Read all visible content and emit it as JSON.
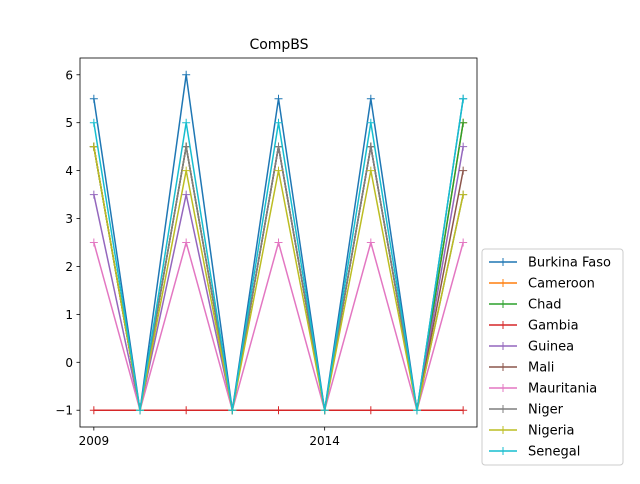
{
  "chart_data": {
    "type": "line",
    "title": "CompBS",
    "xlabel": "",
    "ylabel": "",
    "x": [
      2009,
      2010,
      2011,
      2012,
      2013,
      2014,
      2015,
      2016,
      2017
    ],
    "xlim": [
      2008.7,
      2017.3
    ],
    "ylim": [
      -1.35,
      6.35
    ],
    "xticks": [
      2009,
      2014
    ],
    "yticks": [
      -1,
      0,
      1,
      2,
      3,
      4,
      5,
      6
    ],
    "ytick_labels": [
      "−1",
      "0",
      "1",
      "2",
      "3",
      "4",
      "5",
      "6"
    ],
    "grid": false,
    "legend_position": "outside-right-bottom",
    "marker": "+",
    "series": [
      {
        "name": "Burkina Faso",
        "color": "#1f77b4",
        "values": [
          5.5,
          -1,
          6,
          -1,
          5.5,
          -1,
          5.5,
          -1,
          5.5
        ]
      },
      {
        "name": "Cameroon",
        "color": "#ff7f0e",
        "values": [
          4.5,
          -1,
          4.5,
          -1,
          4.5,
          -1,
          4.5,
          -1,
          5
        ]
      },
      {
        "name": "Chad",
        "color": "#2ca02c",
        "values": [
          4.5,
          -1,
          4.5,
          -1,
          4.5,
          -1,
          4.5,
          -1,
          5
        ]
      },
      {
        "name": "Gambia",
        "color": "#d62728",
        "values": [
          -1,
          -1,
          -1,
          -1,
          -1,
          -1,
          -1,
          -1,
          -1
        ]
      },
      {
        "name": "Guinea",
        "color": "#9467bd",
        "values": [
          3.5,
          -1,
          3.5,
          -1,
          4.5,
          -1,
          4.5,
          -1,
          4.5
        ]
      },
      {
        "name": "Mali",
        "color": "#8c564b",
        "values": [
          4.5,
          -1,
          4.5,
          -1,
          4.5,
          -1,
          4.5,
          -1,
          4
        ]
      },
      {
        "name": "Mauritania",
        "color": "#e377c2",
        "values": [
          2.5,
          -1,
          2.5,
          -1,
          2.5,
          -1,
          2.5,
          -1,
          2.5
        ]
      },
      {
        "name": "Niger",
        "color": "#7f7f7f",
        "values": [
          4.5,
          -1,
          4.5,
          -1,
          4.5,
          -1,
          4.5,
          -1,
          3.5
        ]
      },
      {
        "name": "Nigeria",
        "color": "#bcbd22",
        "values": [
          4.5,
          -1,
          4,
          -1,
          4,
          -1,
          4,
          -1,
          3.5
        ]
      },
      {
        "name": "Senegal",
        "color": "#17becf",
        "values": [
          5,
          -1,
          5,
          -1,
          5,
          -1,
          5,
          -1,
          5.5
        ]
      }
    ]
  }
}
